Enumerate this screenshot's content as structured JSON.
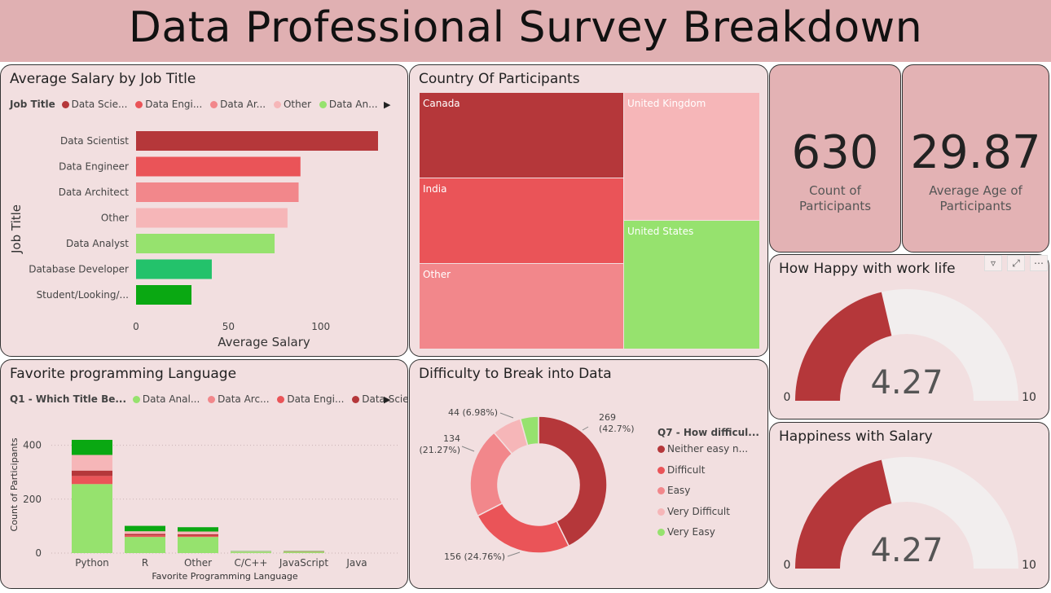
{
  "header": {
    "title": "Data Professional Survey Breakdown"
  },
  "salary_panel": {
    "title": "Average Salary by Job Title",
    "legend_title": "Job Title",
    "legend": [
      {
        "label": "Data Scie...",
        "color": "#b5373a"
      },
      {
        "label": "Data Engi...",
        "color": "#ea5458"
      },
      {
        "label": "Data Ar...",
        "color": "#f2878b"
      },
      {
        "label": "Other",
        "color": "#f6b6b8"
      },
      {
        "label": "Data An...",
        "color": "#96e26e"
      }
    ]
  },
  "country_panel": {
    "title": "Country Of Participants",
    "cells": [
      "Canada",
      "India",
      "Other",
      "United Kingdom",
      "United States"
    ]
  },
  "kpis": [
    {
      "value": "630",
      "label_line1": "Count of",
      "label_line2": "Participants"
    },
    {
      "value": "29.87",
      "label_line1": "Average Age of",
      "label_line2": "Participants"
    }
  ],
  "gauge_work": {
    "title": "How Happy with work life",
    "value": "4.27",
    "min": "0",
    "max": "10",
    "level": 4.27
  },
  "gauge_salary": {
    "title": "Happiness with Salary",
    "value": "4.27",
    "min": "0",
    "max": "10",
    "level": 4.27
  },
  "language_panel": {
    "title": "Favorite programming Language",
    "legend_title": "Q1 - Which Title Be...",
    "legend": [
      {
        "label": "Data Anal...",
        "color": "#96e26e"
      },
      {
        "label": "Data Arc...",
        "color": "#f2878b"
      },
      {
        "label": "Data Engi...",
        "color": "#ea5458"
      },
      {
        "label": "Data Scie...",
        "color": "#b5373a"
      }
    ]
  },
  "difficulty_panel": {
    "title": "Difficulty to Break into Data",
    "legend_title": "Q7 - How difficul...",
    "legend": [
      {
        "label": "Neither easy n...",
        "color": "#b5373a"
      },
      {
        "label": "Difficult",
        "color": "#ea5458"
      },
      {
        "label": "Easy",
        "color": "#f2878b"
      },
      {
        "label": "Very Difficult",
        "color": "#f6b6b8"
      },
      {
        "label": "Very Easy",
        "color": "#96e26e"
      }
    ]
  },
  "chart_data": [
    {
      "type": "bar",
      "orientation": "horizontal",
      "title": "Average Salary by Job Title",
      "xlabel": "Average Salary",
      "ylabel": "Job Title",
      "categories": [
        "Data Scientist",
        "Data Engineer",
        "Data Architect",
        "Other",
        "Data Analyst",
        "Database Developer",
        "Student/Looking/..."
      ],
      "values": [
        131,
        89,
        88,
        82,
        75,
        41,
        30
      ],
      "colors": [
        "#b5373a",
        "#ea5458",
        "#f2878b",
        "#f6b6b8",
        "#96e26e",
        "#23c26b",
        "#0aa812"
      ],
      "xlim": [
        0,
        135
      ],
      "xticks": [
        0,
        50,
        100
      ]
    },
    {
      "type": "bar",
      "stacked": true,
      "title": "Favorite programming Language",
      "xlabel": "Favorite Programming Language",
      "ylabel": "Count of Participants",
      "categories": [
        "Python",
        "R",
        "Other",
        "C/C++",
        "JavaScript",
        "Java"
      ],
      "ylim": [
        0,
        430
      ],
      "yticks": [
        0,
        200,
        400
      ],
      "series": [
        {
          "name": "Data Anal...",
          "color": "#96e26e",
          "values": [
            256,
            60,
            60,
            5,
            5,
            0
          ]
        },
        {
          "name": "Data Engi...",
          "color": "#ea5458",
          "values": [
            30,
            6,
            5,
            0,
            1,
            0
          ]
        },
        {
          "name": "Data Scie...",
          "color": "#b5373a",
          "values": [
            20,
            5,
            5,
            0,
            0,
            0
          ]
        },
        {
          "name": "Data Arc...",
          "color": "#f2878b",
          "values": [
            0,
            0,
            0,
            0,
            0,
            0
          ]
        },
        {
          "color": "#f6b6b8",
          "values": [
            58,
            10,
            10,
            1,
            1,
            0
          ]
        },
        {
          "color": "#0aa812",
          "values": [
            56,
            20,
            16,
            1,
            1,
            0
          ]
        }
      ]
    },
    {
      "type": "pie",
      "donut": true,
      "title": "Difficulty to Break into Data",
      "legend_title": "Q7 - How difficul...",
      "slices": [
        {
          "label": "Neither easy n...",
          "value": 269,
          "percent": "42.7%",
          "color": "#b5373a",
          "text1": "269",
          "text2": "(42.7%)"
        },
        {
          "label": "Difficult",
          "value": 156,
          "percent": "24.76%",
          "color": "#ea5458",
          "text1": "156 (24.76%)",
          "text2": ""
        },
        {
          "label": "Easy",
          "value": 134,
          "percent": "21.27%",
          "color": "#f2878b",
          "text1": "134",
          "text2": "(21.27%)"
        },
        {
          "label": "Very Difficult",
          "value": 44,
          "percent": "6.98%",
          "color": "#f6b6b8",
          "text1": "44 (6.98%)",
          "text2": ""
        },
        {
          "label": "Very Easy",
          "value": 27,
          "percent": "4.29%",
          "color": "#96e26e",
          "text1": "",
          "text2": ""
        }
      ]
    },
    {
      "type": "treemap",
      "title": "Country Of Participants",
      "cells": [
        {
          "label": "Canada",
          "color": "#b5373a"
        },
        {
          "label": "India",
          "color": "#ea5458"
        },
        {
          "label": "Other",
          "color": "#f2878b"
        },
        {
          "label": "United Kingdom",
          "color": "#f6b6b8"
        },
        {
          "label": "United States",
          "color": "#96e26e"
        }
      ]
    }
  ]
}
